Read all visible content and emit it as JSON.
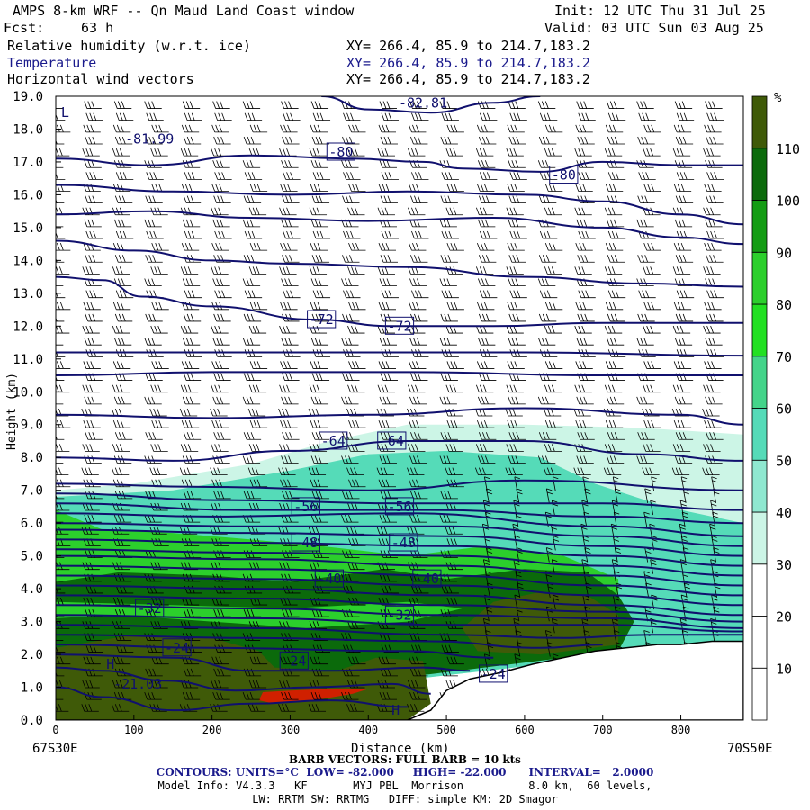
{
  "header": {
    "title": "AMPS 8-km WRF -- Qn Maud Land Coast window",
    "init": "Init: 12 UTC Thu 31 Jul 25",
    "fcst_label": "Fcst:",
    "fcst_value": "63 h",
    "valid": "Valid: 03 UTC Sun 03 Aug 25",
    "fields": [
      {
        "name": "Relative humidity (w.r.t. ice)",
        "xy": "XY= 266.4, 85.9 to 214.7,183.2"
      },
      {
        "name": "Temperature",
        "xy": "XY= 266.4, 85.9 to 214.7,183.2"
      },
      {
        "name": "Horizontal wind vectors",
        "xy": "XY= 266.4, 85.9 to 214.7,183.2"
      }
    ]
  },
  "chart_data": {
    "type": "heatmap",
    "title": "Relative humidity (w.r.t. ice) / Temperature / Horizontal wind vectors",
    "xlabel": "Distance (km)",
    "ylabel": "Height (km)",
    "xlim": [
      0,
      880
    ],
    "ylim": [
      0,
      19
    ],
    "x_ticks": [
      0,
      100,
      200,
      300,
      400,
      500,
      600,
      700,
      800
    ],
    "y_ticks": [
      "0.0",
      "1.0",
      "2.0",
      "3.0",
      "4.0",
      "5.0",
      "6.0",
      "7.0",
      "8.0",
      "9.0",
      "10.0",
      "11.0",
      "12.0",
      "13.0",
      "14.0",
      "15.0",
      "16.0",
      "17.0",
      "18.0",
      "19.0"
    ],
    "start_label": "67S30E",
    "end_label": "70S50E",
    "colorbar": {
      "unit": "%",
      "levels": [
        0,
        10,
        20,
        30,
        40,
        50,
        60,
        70,
        80,
        90,
        100,
        110,
        120
      ],
      "tick_labels": [
        "10",
        "20",
        "30",
        "40",
        "50",
        "60",
        "70",
        "80",
        "90",
        "100",
        "110"
      ],
      "colors": [
        "#ffffff",
        "#ffffff",
        "#ffffff",
        "#ccf5e6",
        "#8fe8d0",
        "#55dbb8",
        "#44d48a",
        "#22e022",
        "#2ccf2c",
        "#149c14",
        "#0b6a0b",
        "#3f5a08",
        "#d02000"
      ]
    },
    "rh_region_colors": {
      "low": "#ccf5e6",
      "mid": "#55dbb8",
      "green": "#2ccf2c",
      "dark": "#0b6a0b",
      "olive": "#3f5a08",
      "max": "#d02000"
    },
    "temperature_contour_labels": [
      {
        "x": 470,
        "h": 18.8,
        "text": "-82.81"
      },
      {
        "x": 120,
        "h": 17.7,
        "text": "-81.99"
      },
      {
        "x": 12,
        "h": 18.5,
        "text": "L"
      },
      {
        "x": 365,
        "h": 17.3,
        "text": "-80"
      },
      {
        "x": 650,
        "h": 16.6,
        "text": "-80"
      },
      {
        "x": 340,
        "h": 12.2,
        "text": "-72"
      },
      {
        "x": 440,
        "h": 12.0,
        "text": "-72"
      },
      {
        "x": 355,
        "h": 8.5,
        "text": "-64"
      },
      {
        "x": 430,
        "h": 8.5,
        "text": "-64"
      },
      {
        "x": 320,
        "h": 6.5,
        "text": "-56"
      },
      {
        "x": 440,
        "h": 6.5,
        "text": "-56"
      },
      {
        "x": 320,
        "h": 5.4,
        "text": "-48"
      },
      {
        "x": 445,
        "h": 5.4,
        "text": "-48"
      },
      {
        "x": 350,
        "h": 4.3,
        "text": "-40"
      },
      {
        "x": 475,
        "h": 4.3,
        "text": "-40"
      },
      {
        "x": 120,
        "h": 3.4,
        "text": "-32"
      },
      {
        "x": 440,
        "h": 3.2,
        "text": "-32"
      },
      {
        "x": 155,
        "h": 2.2,
        "text": "-24"
      },
      {
        "x": 305,
        "h": 1.8,
        "text": "-24"
      },
      {
        "x": 105,
        "h": 1.1,
        "text": "-21.03"
      },
      {
        "x": 70,
        "h": 1.7,
        "text": "H"
      },
      {
        "x": 435,
        "h": 0.3,
        "text": "H"
      },
      {
        "x": 560,
        "h": 1.4,
        "text": "-24"
      }
    ],
    "temperature_contours": [
      {
        "value": -82,
        "points": [
          [
            340,
            19
          ],
          [
            400,
            18.6
          ],
          [
            480,
            18.5
          ],
          [
            560,
            18.8
          ],
          [
            620,
            19
          ]
        ]
      },
      {
        "value": -80,
        "points": [
          [
            0,
            17.1
          ],
          [
            120,
            16.9
          ],
          [
            250,
            17.2
          ],
          [
            380,
            17.1
          ],
          [
            470,
            17.0
          ],
          [
            520,
            16.8
          ],
          [
            620,
            16.7
          ],
          [
            700,
            17.0
          ],
          [
            800,
            16.9
          ],
          [
            880,
            16.9
          ]
        ]
      },
      {
        "value": -78,
        "points": [
          [
            0,
            16.3
          ],
          [
            150,
            16.1
          ],
          [
            300,
            16.0
          ],
          [
            450,
            16.1
          ],
          [
            600,
            16.0
          ],
          [
            700,
            15.8
          ],
          [
            800,
            15.4
          ],
          [
            880,
            15.1
          ]
        ]
      },
      {
        "value": -76,
        "points": [
          [
            0,
            15.4
          ],
          [
            120,
            15.5
          ],
          [
            250,
            15.3
          ],
          [
            400,
            15.2
          ],
          [
            560,
            15.3
          ],
          [
            700,
            15.0
          ],
          [
            800,
            14.7
          ],
          [
            880,
            14.5
          ]
        ]
      },
      {
        "value": -74,
        "points": [
          [
            0,
            14.6
          ],
          [
            100,
            14.3
          ],
          [
            200,
            14.0
          ],
          [
            300,
            13.9
          ],
          [
            450,
            13.8
          ],
          [
            600,
            13.5
          ],
          [
            750,
            13.3
          ],
          [
            880,
            13.2
          ]
        ]
      },
      {
        "value": -72,
        "points": [
          [
            0,
            13.5
          ],
          [
            60,
            13.4
          ],
          [
            110,
            12.9
          ],
          [
            200,
            12.6
          ],
          [
            330,
            12.2
          ],
          [
            430,
            12.0
          ],
          [
            560,
            12.0
          ],
          [
            700,
            12.1
          ],
          [
            880,
            12.1
          ]
        ]
      },
      {
        "value": -70,
        "points": [
          [
            0,
            11.2
          ],
          [
            300,
            11.2
          ],
          [
            600,
            11.2
          ],
          [
            880,
            11.1
          ]
        ]
      },
      {
        "value": -68,
        "points": [
          [
            0,
            10.5
          ],
          [
            200,
            10.6
          ],
          [
            450,
            10.6
          ],
          [
            700,
            10.5
          ],
          [
            880,
            10.5
          ]
        ]
      },
      {
        "value": -66,
        "points": [
          [
            0,
            9.3
          ],
          [
            200,
            9.2
          ],
          [
            400,
            9.3
          ],
          [
            600,
            9.5
          ],
          [
            800,
            9.3
          ],
          [
            880,
            9.0
          ]
        ]
      },
      {
        "value": -64,
        "points": [
          [
            0,
            8.0
          ],
          [
            150,
            7.9
          ],
          [
            300,
            8.2
          ],
          [
            450,
            8.5
          ],
          [
            600,
            8.5
          ],
          [
            750,
            8.1
          ],
          [
            880,
            7.9
          ]
        ]
      },
      {
        "value": -62,
        "points": [
          [
            0,
            7.2
          ],
          [
            200,
            7.1
          ],
          [
            400,
            7.0
          ],
          [
            600,
            7.3
          ],
          [
            880,
            7.0
          ]
        ]
      },
      {
        "value": -60,
        "points": [
          [
            0,
            6.9
          ],
          [
            220,
            6.7
          ],
          [
            450,
            6.6
          ],
          [
            700,
            6.6
          ],
          [
            880,
            6.4
          ]
        ]
      },
      {
        "value": -58,
        "points": [
          [
            0,
            6.6
          ],
          [
            250,
            6.4
          ],
          [
            480,
            6.4
          ],
          [
            700,
            6.2
          ],
          [
            880,
            6.0
          ]
        ]
      },
      {
        "value": -56,
        "points": [
          [
            0,
            6.3
          ],
          [
            200,
            6.2
          ],
          [
            450,
            6.3
          ],
          [
            700,
            5.9
          ],
          [
            880,
            5.6
          ]
        ]
      },
      {
        "value": -54,
        "points": [
          [
            0,
            6.0
          ],
          [
            250,
            5.9
          ],
          [
            500,
            5.9
          ],
          [
            700,
            5.6
          ],
          [
            880,
            5.3
          ]
        ]
      },
      {
        "value": -52,
        "points": [
          [
            0,
            5.8
          ],
          [
            250,
            5.7
          ],
          [
            500,
            5.6
          ],
          [
            700,
            5.3
          ],
          [
            880,
            5.0
          ]
        ]
      },
      {
        "value": -50,
        "points": [
          [
            0,
            5.5
          ],
          [
            250,
            5.4
          ],
          [
            500,
            5.3
          ],
          [
            700,
            5.0
          ],
          [
            880,
            4.7
          ]
        ]
      },
      {
        "value": -48,
        "points": [
          [
            0,
            5.2
          ],
          [
            250,
            5.1
          ],
          [
            500,
            5.0
          ],
          [
            700,
            4.7
          ],
          [
            880,
            4.4
          ]
        ]
      },
      {
        "value": -46,
        "points": [
          [
            0,
            5.0
          ],
          [
            250,
            4.9
          ],
          [
            500,
            4.7
          ],
          [
            700,
            4.4
          ],
          [
            880,
            4.1
          ]
        ]
      },
      {
        "value": -44,
        "points": [
          [
            0,
            4.7
          ],
          [
            250,
            4.6
          ],
          [
            500,
            4.4
          ],
          [
            700,
            4.1
          ],
          [
            880,
            3.8
          ]
        ]
      },
      {
        "value": -42,
        "points": [
          [
            0,
            4.4
          ],
          [
            250,
            4.3
          ],
          [
            500,
            4.1
          ],
          [
            700,
            3.8
          ],
          [
            880,
            3.5
          ]
        ]
      },
      {
        "value": -40,
        "points": [
          [
            0,
            4.1
          ],
          [
            250,
            4.0
          ],
          [
            500,
            3.8
          ],
          [
            700,
            3.5
          ],
          [
            880,
            3.2
          ]
        ]
      },
      {
        "value": -38,
        "points": [
          [
            0,
            3.8
          ],
          [
            250,
            3.7
          ],
          [
            500,
            3.5
          ],
          [
            700,
            3.3
          ],
          [
            880,
            3.0
          ]
        ]
      },
      {
        "value": -36,
        "points": [
          [
            0,
            3.5
          ],
          [
            250,
            3.4
          ],
          [
            500,
            3.2
          ],
          [
            700,
            3.1
          ],
          [
            880,
            2.8
          ]
        ]
      },
      {
        "value": -34,
        "points": [
          [
            0,
            3.2
          ],
          [
            250,
            3.1
          ],
          [
            500,
            2.9
          ],
          [
            700,
            2.9
          ],
          [
            880,
            2.7
          ]
        ]
      },
      {
        "value": -32,
        "points": [
          [
            0,
            2.9
          ],
          [
            250,
            2.8
          ],
          [
            500,
            2.6
          ],
          [
            650,
            2.5
          ],
          [
            760,
            2.6
          ],
          [
            880,
            2.6
          ]
        ]
      },
      {
        "value": -30,
        "points": [
          [
            0,
            2.6
          ],
          [
            250,
            2.5
          ],
          [
            480,
            2.4
          ],
          [
            620,
            2.2
          ],
          [
            700,
            2.3
          ]
        ]
      },
      {
        "value": -28,
        "points": [
          [
            0,
            2.3
          ],
          [
            200,
            2.2
          ],
          [
            450,
            2.1
          ],
          [
            560,
            1.9
          ]
        ]
      },
      {
        "value": -26,
        "points": [
          [
            0,
            2.0
          ],
          [
            150,
            1.9
          ],
          [
            250,
            1.5
          ],
          [
            350,
            1.5
          ],
          [
            470,
            1.6
          ],
          [
            530,
            1.5
          ]
        ]
      },
      {
        "value": -24,
        "points": [
          [
            0,
            1.6
          ],
          [
            60,
            1.5
          ],
          [
            140,
            1.2
          ],
          [
            230,
            0.9
          ],
          [
            330,
            1.0
          ],
          [
            430,
            1.1
          ],
          [
            480,
            0.8
          ]
        ]
      },
      {
        "value": -22,
        "points": [
          [
            0,
            1.0
          ],
          [
            60,
            0.7
          ],
          [
            150,
            0.3
          ],
          [
            250,
            0.5
          ],
          [
            350,
            0.6
          ],
          [
            450,
            0.4
          ]
        ]
      }
    ],
    "terrain_height_km": [
      [
        0,
        0
      ],
      [
        450,
        0
      ],
      [
        480,
        0.3
      ],
      [
        500,
        0.9
      ],
      [
        530,
        1.25
      ],
      [
        570,
        1.45
      ],
      [
        610,
        1.7
      ],
      [
        650,
        1.9
      ],
      [
        690,
        2.1
      ],
      [
        730,
        2.2
      ],
      [
        770,
        2.3
      ],
      [
        800,
        2.3
      ],
      [
        840,
        2.4
      ],
      [
        880,
        2.4
      ]
    ],
    "wind_barbs": "rows of barbs every ~0.35 km from surface to 19 km; westerly in the upper levels, steep/dense barbs near the plateau edge (550-880 km, 2-7 km)"
  },
  "footer": {
    "barb": "BARB VECTORS: FULL BARB = 10 kts",
    "contours": "CONTOURS: UNITS=°C  LOW= -82.000     HIGH= -22.000      INTERVAL=   2.0000",
    "model1": "Model Info: V4.3.3   KF       MYJ PBL  Morrison          8.0 km,  60 levels,",
    "model2": "LW: RRTM SW: RRTMG   DIFF: simple KM: 2D Smagor"
  }
}
